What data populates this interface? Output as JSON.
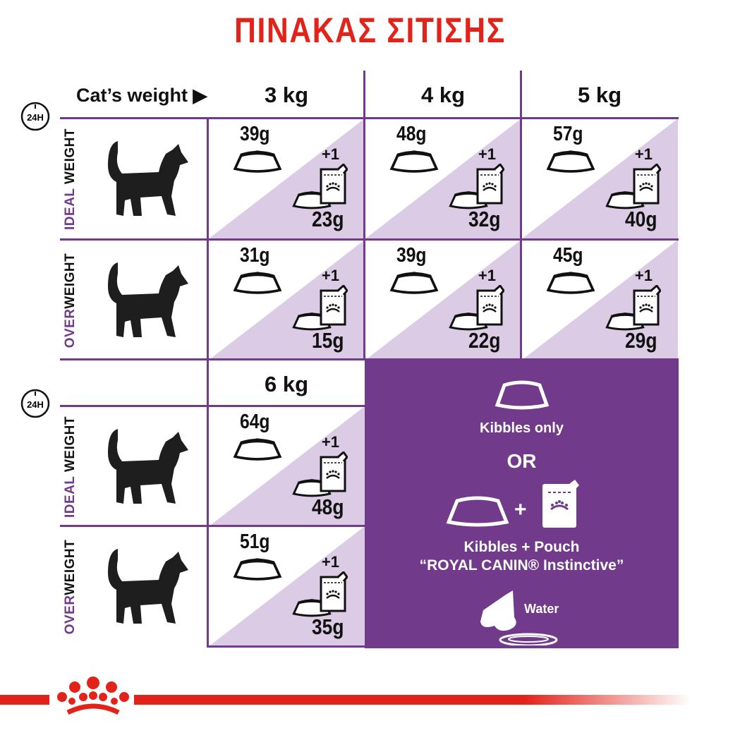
{
  "title": "ΠΙΝΑΚΑΣ ΣΙΤΙΣΗΣ",
  "colors": {
    "title_red": "#e2231a",
    "purple": "#713a8a",
    "lavender": "#dccbe4"
  },
  "header": {
    "label": "Cat’s weight",
    "arrow_icon": "triangle-right",
    "clock_label": "24H"
  },
  "labels": {
    "ideal": {
      "accent": "IDEAL",
      "rest": " WEIGHT"
    },
    "over": {
      "accent": "OVER",
      "rest": "WEIGHT"
    }
  },
  "table_top": {
    "weights": [
      "3 kg",
      "4 kg",
      "5 kg"
    ],
    "ideal": [
      {
        "kibbles_only": "39g",
        "with_pouch": "23g",
        "pouch": "+1"
      },
      {
        "kibbles_only": "48g",
        "with_pouch": "32g",
        "pouch": "+1"
      },
      {
        "kibbles_only": "57g",
        "with_pouch": "40g",
        "pouch": "+1"
      }
    ],
    "over": [
      {
        "kibbles_only": "31g",
        "with_pouch": "15g",
        "pouch": "+1"
      },
      {
        "kibbles_only": "39g",
        "with_pouch": "22g",
        "pouch": "+1"
      },
      {
        "kibbles_only": "45g",
        "with_pouch": "29g",
        "pouch": "+1"
      }
    ]
  },
  "table_bottom": {
    "weights": [
      "6 kg"
    ],
    "ideal": [
      {
        "kibbles_only": "64g",
        "with_pouch": "48g",
        "pouch": "+1"
      }
    ],
    "over": [
      {
        "kibbles_only": "51g",
        "with_pouch": "35g",
        "pouch": "+1"
      }
    ]
  },
  "legend": {
    "kibbles_only": "Kibbles only",
    "or": "OR",
    "plus": "+",
    "kibbles_pouch": "Kibbles + Pouch",
    "product": "“ROYAL CANIN® Instinctive”",
    "water": "Water"
  },
  "logo": {
    "brand": "ROYAL CANIN crown"
  }
}
